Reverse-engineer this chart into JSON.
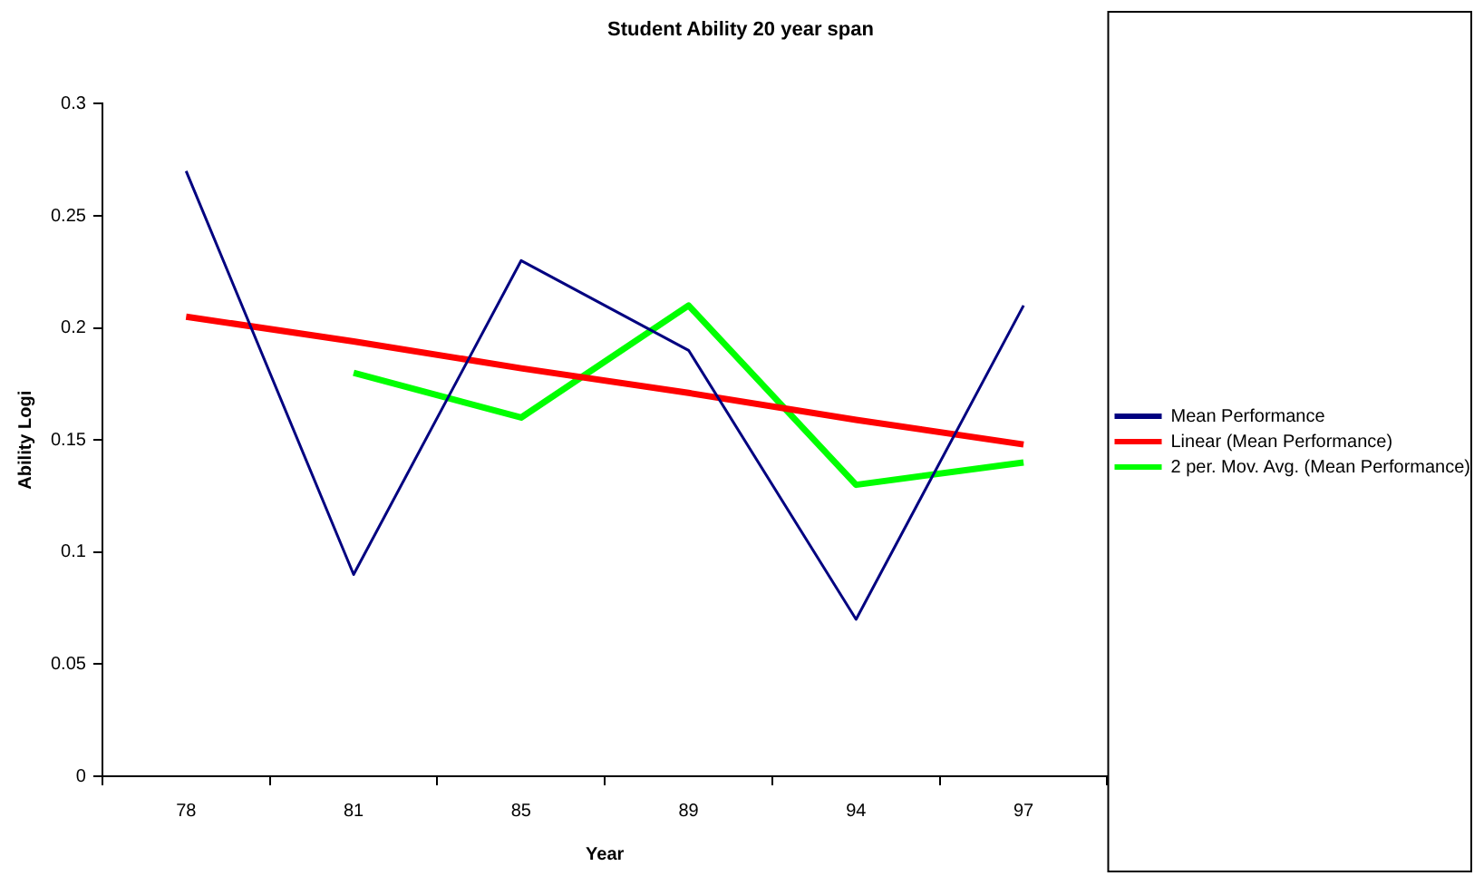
{
  "chart_data": {
    "type": "line",
    "title": "Student Ability 20 year span",
    "xlabel": "Year",
    "ylabel": "Ability Logi",
    "categories": [
      "78",
      "81",
      "85",
      "89",
      "94",
      "97"
    ],
    "series": [
      {
        "name": "Mean Performance",
        "color": "#000080",
        "values": [
          0.27,
          0.09,
          0.23,
          0.19,
          0.07,
          0.21
        ]
      },
      {
        "name": "Linear (Mean Performance)",
        "color": "#ff0000",
        "values": [
          0.205,
          0.194,
          0.182,
          0.171,
          0.159,
          0.148
        ]
      },
      {
        "name": "2 per. Mov. Avg. (Mean Performance)",
        "color": "#00ff00",
        "values": [
          null,
          0.18,
          0.16,
          0.21,
          0.13,
          0.14
        ]
      }
    ],
    "ylim": [
      0,
      0.3
    ],
    "yticks": [
      0,
      0.05,
      0.1,
      0.15,
      0.2,
      0.25,
      0.3
    ],
    "grid": false,
    "legend": "right",
    "marker": "none",
    "line_style": "solid"
  }
}
